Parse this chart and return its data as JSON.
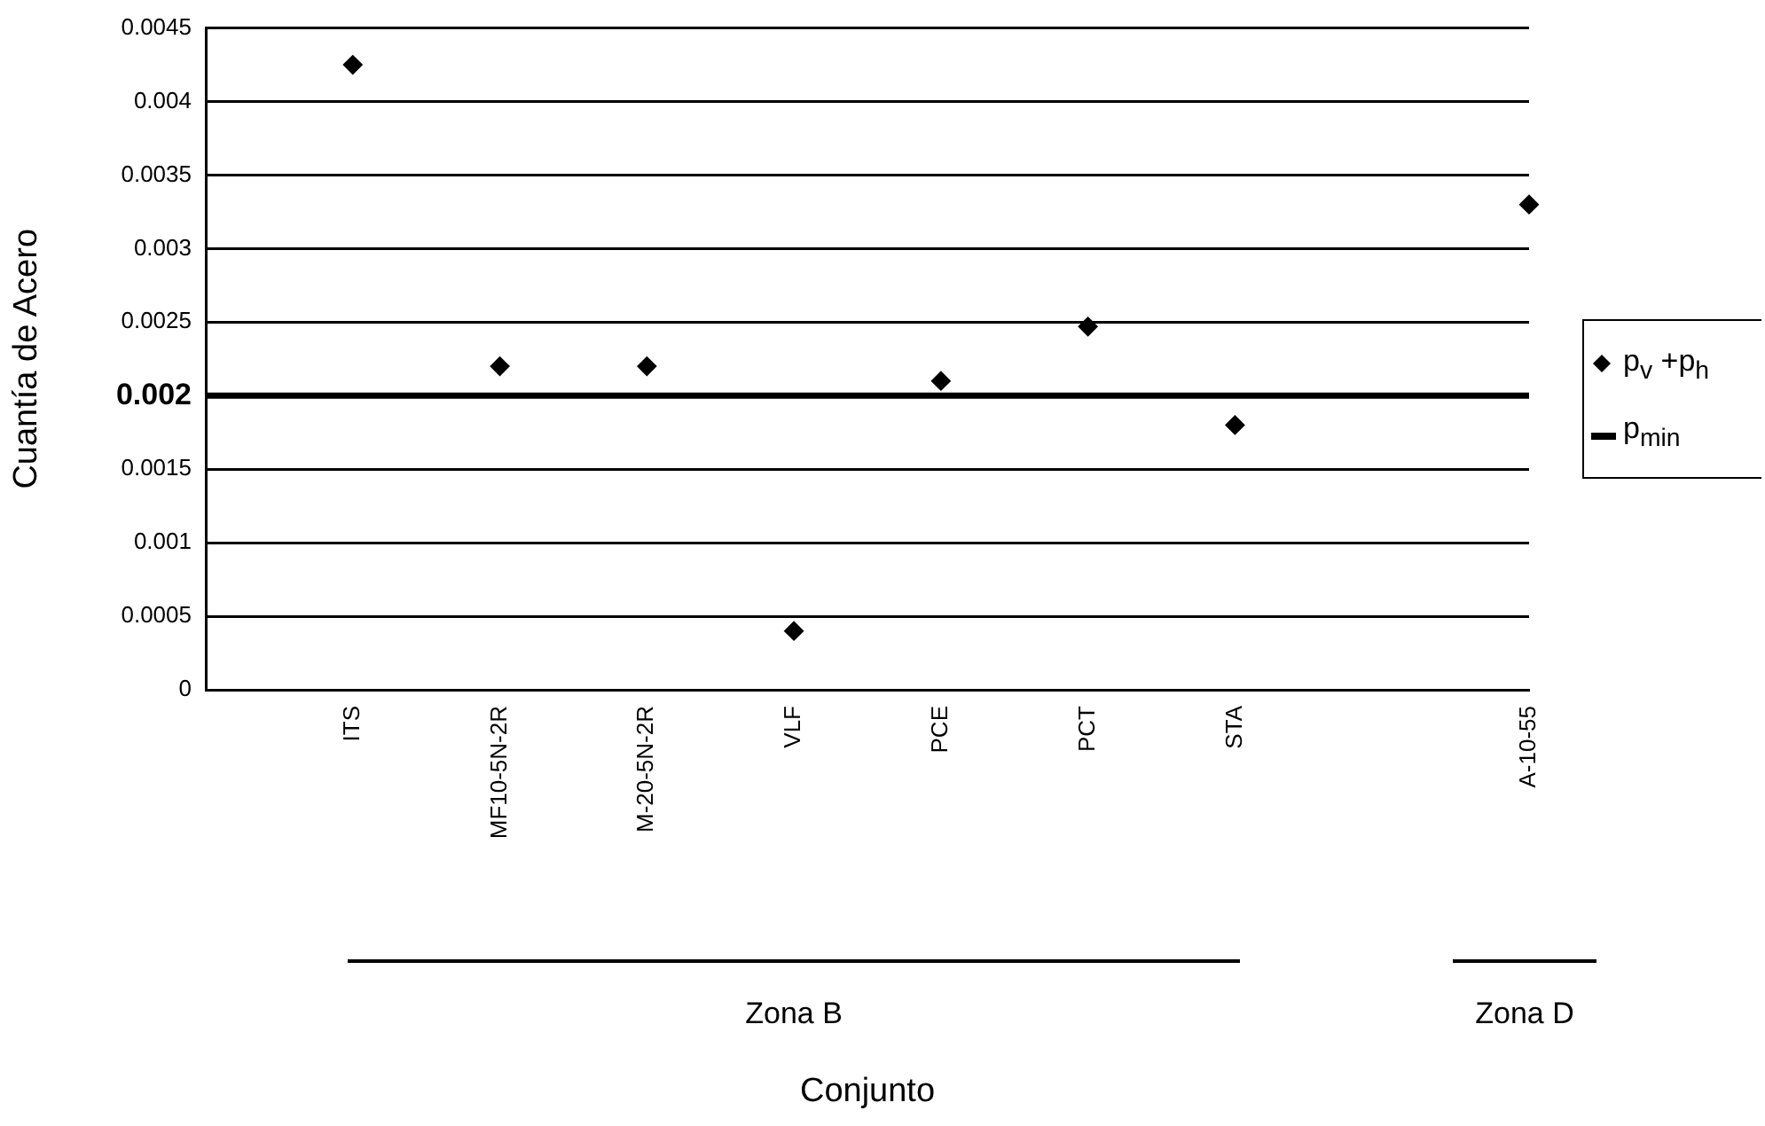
{
  "chart_data": {
    "type": "scatter",
    "ylabel": "Cuantía de Acero",
    "categories": [
      null,
      "ITS",
      "MF10-5N-2R",
      "M-20-5N-2R",
      "VLF",
      "PCE",
      "PCT",
      "STA",
      null,
      "A-10-55"
    ],
    "series": [
      {
        "name": "p$_{v}$ +p$_{h}$",
        "color": "#000000",
        "values": [
          null,
          0.00425,
          0.0022,
          0.0022,
          0.0004,
          0.0021,
          0.00247,
          0.0018,
          null,
          0.0033
        ]
      }
    ],
    "ylim": [
      0,
      0.0045
    ],
    "yticks": [
      0,
      0.0005,
      0.001,
      0.0015,
      0.002,
      0.0025,
      0.003,
      0.0035,
      0.004,
      0.0045
    ],
    "ref_lines": [
      {
        "axis": "y",
        "value": 0.002,
        "label": "p$_{min}$",
        "color": "#000000"
      }
    ],
    "annotations": [
      "Zona B",
      "Zona D",
      "Conjunto"
    ],
    "grid": "y",
    "legend": "right",
    "marker": "diamond"
  }
}
